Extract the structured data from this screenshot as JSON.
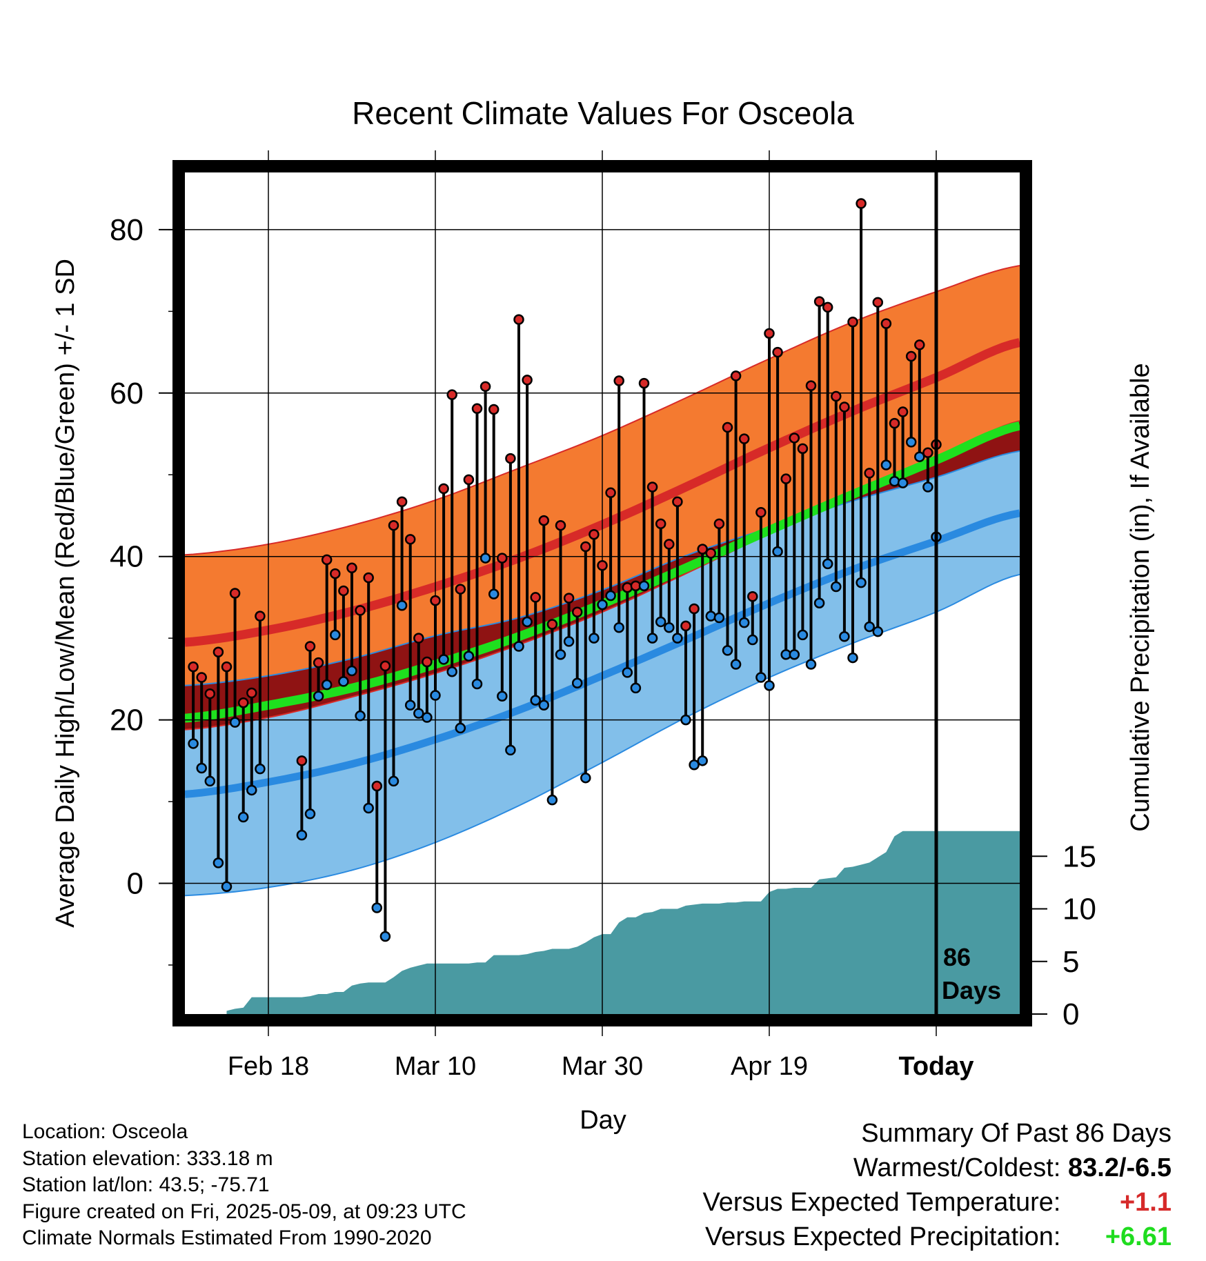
{
  "chart_data": {
    "type": "line",
    "title": "Recent Climate Values For Osceola",
    "xlabel": "Day",
    "ylabel": "Average Daily High/Low/Mean (Red/Blue/Green) +/- 1 SD",
    "y2label": "Cumulative Precipitation (in), If Available",
    "ylim": [
      -16,
      87
    ],
    "y2lim": [
      0,
      80
    ],
    "xlim": [
      0,
      100
    ],
    "x_ticks": [
      {
        "day": 10,
        "label": "Feb 18"
      },
      {
        "day": 30,
        "label": "Mar 10"
      },
      {
        "day": 50,
        "label": "Mar 30"
      },
      {
        "day": 70,
        "label": "Apr 19"
      },
      {
        "day": 90,
        "label": "Today"
      }
    ],
    "y_ticks": [
      0,
      20,
      40,
      60,
      80
    ],
    "y2_ticks": [
      0,
      5,
      10,
      15
    ],
    "today_day": 90,
    "today_label_line1": "86",
    "today_label_line2": "Days",
    "grid": true,
    "normals": {
      "day": [
        0,
        10,
        20,
        30,
        40,
        50,
        60,
        70,
        80,
        90,
        100
      ],
      "high_mean": [
        29.5,
        31.0,
        33.3,
        36.3,
        39.8,
        43.9,
        48.5,
        53.3,
        57.8,
        61.9,
        66.2
      ],
      "high_sd_upper": [
        40.2,
        41.5,
        43.8,
        46.9,
        50.8,
        54.8,
        59.4,
        64.2,
        68.7,
        72.4,
        75.6
      ],
      "high_sd_lower": [
        18.8,
        20.3,
        22.8,
        25.7,
        29.2,
        33.2,
        37.9,
        42.8,
        47.5,
        51.9,
        56.6
      ],
      "mean_mean": [
        20.2,
        21.8,
        23.9,
        26.8,
        30.2,
        34.2,
        38.6,
        43.2,
        47.6,
        51.8,
        56.0
      ],
      "low_mean": [
        10.9,
        12.4,
        14.6,
        17.6,
        21.2,
        25.4,
        29.8,
        34.3,
        38.4,
        41.9,
        45.3
      ],
      "low_sd_upper": [
        24.2,
        25.4,
        27.5,
        30.3,
        32.5,
        35.9,
        40.1,
        43.5,
        46.8,
        49.7,
        52.9
      ],
      "low_sd_lower": [
        -1.5,
        -0.5,
        1.6,
        5.0,
        9.5,
        14.8,
        20.3,
        25.2,
        29.4,
        33.2,
        37.8
      ]
    },
    "series": [
      {
        "name": "High",
        "color": "#d62a2a",
        "values": [
          26.5,
          25.2,
          23.2,
          28.3,
          26.5,
          35.5,
          22.1,
          23.3,
          32.7,
          null,
          null,
          null,
          null,
          15.0,
          29.0,
          27.0,
          39.6,
          37.9,
          35.8,
          38.6,
          33.4,
          37.4,
          11.9,
          26.6,
          43.8,
          46.7,
          42.1,
          30.0,
          27.1,
          34.6,
          48.3,
          59.8,
          36.0,
          49.4,
          58.1,
          60.8,
          58.0,
          39.8,
          52.0,
          69.0,
          61.6,
          35.0,
          44.4,
          31.7,
          43.8,
          34.9,
          33.2,
          41.2,
          42.7,
          38.9,
          47.8,
          61.5,
          36.2,
          36.4,
          61.2,
          48.5,
          44.0,
          41.5,
          46.7,
          31.5,
          33.6,
          40.9,
          40.4,
          44.0,
          55.8,
          62.1,
          54.4,
          35.1,
          45.4,
          67.3,
          65.0,
          49.5,
          54.5,
          53.2,
          60.9,
          71.2,
          70.5,
          59.6,
          58.3,
          68.7,
          83.2,
          50.2,
          71.1,
          68.5,
          56.3,
          57.7,
          64.5,
          65.9,
          52.7,
          53.7
        ]
      },
      {
        "name": "Low",
        "color": "#2a8ae0",
        "values": [
          17.1,
          14.1,
          12.5,
          2.5,
          -0.4,
          19.7,
          8.1,
          11.4,
          14.0,
          null,
          null,
          null,
          null,
          5.9,
          8.5,
          22.9,
          24.3,
          30.4,
          24.7,
          26.0,
          20.5,
          9.2,
          -3.0,
          -6.5,
          12.5,
          34.0,
          21.8,
          20.8,
          20.3,
          23.0,
          27.4,
          25.9,
          19.0,
          27.8,
          24.4,
          39.8,
          35.4,
          22.9,
          16.3,
          29.0,
          32.0,
          22.4,
          21.8,
          10.2,
          28.0,
          29.6,
          24.5,
          12.9,
          30.0,
          34.1,
          35.2,
          31.3,
          25.8,
          23.9,
          36.4,
          30.0,
          32.0,
          31.3,
          30.0,
          20.0,
          14.5,
          15.0,
          32.7,
          32.5,
          28.5,
          26.8,
          31.9,
          29.8,
          25.2,
          24.2,
          40.6,
          28.0,
          28.0,
          30.4,
          26.8,
          34.3,
          39.1,
          36.3,
          30.2,
          27.6,
          36.8,
          31.4,
          30.8,
          51.2,
          49.2,
          49.0,
          54.0,
          52.2,
          48.5,
          42.4
        ]
      }
    ],
    "precip_cumulative": {
      "day": [
        5,
        6,
        7,
        8,
        9,
        10,
        11,
        12,
        13,
        14,
        15,
        16,
        17,
        18,
        19,
        20,
        21,
        22,
        23,
        24,
        25,
        26,
        27,
        28,
        29,
        30,
        31,
        32,
        33,
        34,
        35,
        36,
        37,
        38,
        39,
        40,
        41,
        42,
        43,
        44,
        45,
        46,
        47,
        48,
        49,
        50,
        51,
        52,
        53,
        54,
        55,
        56,
        57,
        58,
        59,
        60,
        61,
        62,
        63,
        64,
        65,
        66,
        67,
        68,
        69,
        70,
        71,
        72,
        73,
        74,
        75,
        76,
        77,
        78,
        79,
        80,
        81,
        82,
        83,
        84,
        85,
        86,
        87,
        88,
        89,
        90,
        100
      ],
      "values": [
        0.3,
        0.5,
        0.6,
        1.6,
        1.6,
        1.6,
        1.6,
        1.6,
        1.6,
        1.6,
        1.7,
        1.9,
        1.9,
        2.1,
        2.1,
        2.7,
        2.9,
        3.0,
        3.0,
        3.0,
        3.5,
        4.1,
        4.4,
        4.6,
        4.8,
        4.8,
        4.8,
        4.8,
        4.8,
        4.8,
        4.9,
        4.9,
        5.6,
        5.6,
        5.6,
        5.6,
        5.7,
        5.9,
        6.0,
        6.2,
        6.2,
        6.2,
        6.4,
        6.8,
        7.3,
        7.6,
        7.6,
        8.7,
        9.2,
        9.2,
        9.6,
        9.7,
        10.0,
        10.0,
        10.0,
        10.3,
        10.4,
        10.5,
        10.5,
        10.5,
        10.6,
        10.6,
        10.7,
        10.7,
        10.7,
        11.6,
        11.9,
        11.9,
        12.0,
        12.0,
        12.0,
        12.8,
        12.9,
        13.0,
        13.9,
        14.0,
        14.2,
        14.4,
        14.9,
        15.4,
        16.9,
        17.4,
        17.4,
        17.4,
        17.4,
        17.4,
        17.4
      ]
    },
    "colors": {
      "high_band": "#f47a30",
      "high_mean": "#d72a28",
      "low_band": "#82bfea",
      "low_mean": "#2a8ae0",
      "mean_line": "#1ee01e",
      "overlap": "#8f1313",
      "precip": "#4a9aa2"
    }
  },
  "footer": {
    "location": "Location: Osceola",
    "elevation": "Station elevation: 333.18 m",
    "latlon": "Station lat/lon: 43.5; -75.71",
    "created": "Figure created on Fri, 2025-05-09, at 09:23 UTC",
    "normals": "Climate Normals Estimated From 1990-2020"
  },
  "summary": {
    "title": "Summary Of Past 86 Days",
    "warmest_label": "Warmest/Coldest:",
    "warmest_value": "83.2/-6.5",
    "temp_label": "Versus Expected Temperature:",
    "temp_value": "+1.1",
    "precip_label": "Versus Expected Precipitation:",
    "precip_value": "+6.61"
  }
}
